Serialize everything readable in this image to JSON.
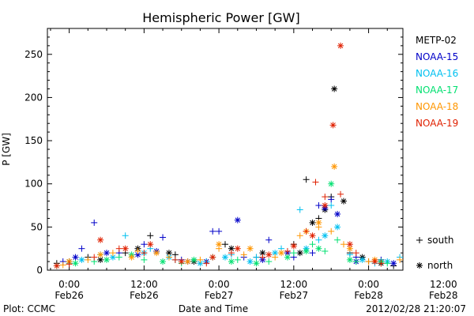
{
  "chart_data": {
    "type": "scatter",
    "title": "Hemispheric Power [GW]",
    "ylabel": "P [GW]",
    "xlabel": "Date and Time",
    "ylim": [
      0,
      280
    ],
    "xlim": [
      -3.5,
      53.5
    ],
    "x_unit": "hours since 2012-02-26 00:00",
    "yticks": [
      0,
      50,
      100,
      150,
      200,
      250
    ],
    "xticks": [
      {
        "x": 0,
        "time": "0:00",
        "date": "Feb26"
      },
      {
        "x": 12,
        "time": "12:00",
        "date": "Feb26"
      },
      {
        "x": 24,
        "time": "0:00",
        "date": "Feb27"
      },
      {
        "x": 36,
        "time": "12:00",
        "date": "Feb27"
      },
      {
        "x": 48,
        "time": "0:00",
        "date": "Feb28"
      },
      {
        "x": 60,
        "time": "12:00",
        "date": "Feb28"
      }
    ],
    "legend_placement": "right",
    "marker_legend": [
      {
        "symbol": "+",
        "label": "south"
      },
      {
        "symbol": "*",
        "label": "north"
      }
    ],
    "series": [
      {
        "name": "METP-02",
        "color": "#000000",
        "south": [
          [
            -2,
            8
          ],
          [
            3,
            15
          ],
          [
            9,
            20
          ],
          [
            13,
            40
          ],
          [
            17,
            18
          ],
          [
            25,
            30
          ],
          [
            30,
            15
          ],
          [
            36,
            30
          ],
          [
            38,
            105
          ],
          [
            40,
            60
          ],
          [
            42,
            85
          ],
          [
            45,
            20
          ],
          [
            48,
            10
          ],
          [
            52,
            5
          ],
          [
            58,
            12
          ],
          [
            62,
            15
          ],
          [
            66,
            8
          ],
          [
            70,
            10
          ]
        ],
        "north": [
          [
            0,
            10
          ],
          [
            5,
            12
          ],
          [
            11,
            25
          ],
          [
            16,
            20
          ],
          [
            20,
            10
          ],
          [
            26,
            25
          ],
          [
            31,
            20
          ],
          [
            37,
            20
          ],
          [
            39,
            55
          ],
          [
            41,
            70
          ],
          [
            42.5,
            210
          ],
          [
            44,
            80
          ],
          [
            47,
            15
          ],
          [
            50,
            8
          ],
          [
            55,
            10
          ],
          [
            60,
            35
          ],
          [
            64,
            10
          ],
          [
            68,
            8
          ]
        ]
      },
      {
        "name": "NOAA-15",
        "color": "#0000c8",
        "south": [
          [
            -1,
            10
          ],
          [
            2,
            25
          ],
          [
            4,
            55
          ],
          [
            8,
            20
          ],
          [
            12,
            30
          ],
          [
            15,
            38
          ],
          [
            18,
            12
          ],
          [
            23,
            45
          ],
          [
            24,
            45
          ],
          [
            28,
            15
          ],
          [
            32,
            35
          ],
          [
            36,
            15
          ],
          [
            39,
            20
          ],
          [
            40,
            75
          ],
          [
            42,
            82
          ],
          [
            46,
            15
          ],
          [
            50,
            12
          ],
          [
            55,
            15
          ],
          [
            58,
            95
          ],
          [
            59.5,
            45
          ],
          [
            62,
            18
          ],
          [
            66,
            15
          ]
        ],
        "north": [
          [
            1,
            15
          ],
          [
            6,
            20
          ],
          [
            11,
            18
          ],
          [
            14,
            22
          ],
          [
            19,
            10
          ],
          [
            22,
            10
          ],
          [
            27,
            58
          ],
          [
            31,
            12
          ],
          [
            35,
            20
          ],
          [
            41,
            72
          ],
          [
            43,
            65
          ],
          [
            46,
            10
          ],
          [
            52,
            8
          ],
          [
            57,
            35
          ],
          [
            59,
            60
          ],
          [
            63,
            12
          ],
          [
            67,
            10
          ]
        ]
      },
      {
        "name": "NOAA-16",
        "color": "#00c0f0",
        "south": [
          [
            0,
            8
          ],
          [
            5,
            18
          ],
          [
            9,
            40
          ],
          [
            13,
            25
          ],
          [
            17,
            12
          ],
          [
            22,
            10
          ],
          [
            26,
            18
          ],
          [
            30,
            15
          ],
          [
            34,
            25
          ],
          [
            37,
            70
          ],
          [
            40,
            35
          ],
          [
            42,
            75
          ],
          [
            45,
            18
          ],
          [
            49,
            8
          ],
          [
            53,
            15
          ],
          [
            58,
            25
          ],
          [
            61,
            15
          ],
          [
            65,
            12
          ],
          [
            69,
            10
          ]
        ],
        "north": [
          [
            2,
            12
          ],
          [
            7,
            15
          ],
          [
            12,
            20
          ],
          [
            16,
            15
          ],
          [
            21,
            8
          ],
          [
            25,
            15
          ],
          [
            29,
            10
          ],
          [
            33,
            20
          ],
          [
            38,
            25
          ],
          [
            41,
            40
          ],
          [
            43,
            50
          ],
          [
            47,
            12
          ],
          [
            51,
            10
          ],
          [
            56,
            18
          ],
          [
            59,
            30
          ],
          [
            64,
            10
          ]
        ]
      },
      {
        "name": "NOAA-17",
        "color": "#00e070",
        "south": [
          [
            -2,
            5
          ],
          [
            4,
            10
          ],
          [
            8,
            15
          ],
          [
            12,
            12
          ],
          [
            18,
            8
          ],
          [
            23,
            15
          ],
          [
            27,
            12
          ],
          [
            32,
            10
          ],
          [
            36,
            20
          ],
          [
            39,
            30
          ],
          [
            41,
            22
          ],
          [
            43,
            35
          ],
          [
            46,
            10
          ],
          [
            51,
            8
          ],
          [
            55,
            12
          ],
          [
            59,
            20
          ],
          [
            63,
            10
          ],
          [
            68,
            8
          ]
        ],
        "north": [
          [
            1,
            8
          ],
          [
            6,
            12
          ],
          [
            10,
            18
          ],
          [
            15,
            10
          ],
          [
            20,
            12
          ],
          [
            26,
            10
          ],
          [
            30,
            8
          ],
          [
            35,
            15
          ],
          [
            38,
            22
          ],
          [
            40,
            25
          ],
          [
            42,
            100
          ],
          [
            45,
            12
          ],
          [
            50,
            10
          ],
          [
            54,
            8
          ],
          [
            58,
            20
          ],
          [
            62,
            12
          ]
        ]
      },
      {
        "name": "NOAA-18",
        "color": "#ff9600",
        "south": [
          [
            -1,
            6
          ],
          [
            3,
            12
          ],
          [
            7,
            20
          ],
          [
            11,
            22
          ],
          [
            16,
            15
          ],
          [
            21,
            12
          ],
          [
            24,
            25
          ],
          [
            28,
            18
          ],
          [
            33,
            15
          ],
          [
            37,
            40
          ],
          [
            40,
            50
          ],
          [
            42,
            45
          ],
          [
            44,
            30
          ],
          [
            48,
            10
          ],
          [
            53,
            12
          ],
          [
            57,
            50
          ],
          [
            60,
            20
          ],
          [
            65,
            15
          ],
          [
            70,
            25
          ]
        ],
        "north": [
          [
            0,
            10
          ],
          [
            5,
            18
          ],
          [
            10,
            15
          ],
          [
            14,
            20
          ],
          [
            19,
            10
          ],
          [
            24,
            30
          ],
          [
            29,
            25
          ],
          [
            34,
            20
          ],
          [
            38,
            45
          ],
          [
            40,
            55
          ],
          [
            42.5,
            120
          ],
          [
            45,
            25
          ],
          [
            49,
            12
          ],
          [
            55,
            10
          ],
          [
            58,
            55
          ],
          [
            63,
            15
          ],
          [
            67,
            20
          ],
          [
            71,
            18
          ]
        ]
      },
      {
        "name": "NOAA-19",
        "color": "#e02000",
        "south": [
          [
            0,
            7
          ],
          [
            4,
            15
          ],
          [
            8,
            25
          ],
          [
            12,
            20
          ],
          [
            17,
            12
          ],
          [
            22,
            8
          ],
          [
            26,
            20
          ],
          [
            31,
            15
          ],
          [
            35,
            22
          ],
          [
            38,
            45
          ],
          [
            39.5,
            102
          ],
          [
            41,
            85
          ],
          [
            43.5,
            88
          ],
          [
            46,
            20
          ],
          [
            50,
            8
          ],
          [
            54,
            10
          ],
          [
            58,
            78
          ],
          [
            59,
            95
          ],
          [
            61,
            30
          ],
          [
            66,
            10
          ],
          [
            70,
            28
          ]
        ],
        "north": [
          [
            -2,
            5
          ],
          [
            5,
            35
          ],
          [
            9,
            25
          ],
          [
            13,
            30
          ],
          [
            18,
            10
          ],
          [
            23,
            15
          ],
          [
            27,
            25
          ],
          [
            32,
            18
          ],
          [
            36,
            28
          ],
          [
            39,
            40
          ],
          [
            41,
            75
          ],
          [
            42.3,
            168
          ],
          [
            43.5,
            260
          ],
          [
            45,
            30
          ],
          [
            49,
            10
          ],
          [
            56,
            15
          ],
          [
            58,
            72
          ],
          [
            59.8,
            52
          ],
          [
            64,
            12
          ],
          [
            71,
            30
          ]
        ]
      }
    ]
  },
  "footer": {
    "left": "Plot: CCMC",
    "center": "Date and Time",
    "right": "2012/02/28 21:20:07"
  }
}
